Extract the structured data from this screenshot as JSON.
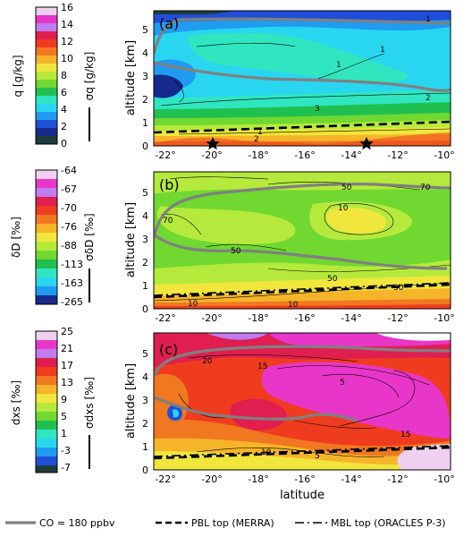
{
  "chart_data": [
    {
      "panel": "(a)",
      "type": "contourf",
      "colorbar": {
        "label": "q [g/kg]",
        "ticks": [
          "16",
          "14",
          "12",
          "10",
          "8",
          "6",
          "4",
          "2",
          "0"
        ],
        "levels": [
          0,
          1,
          2,
          3,
          4,
          5,
          6,
          7,
          8,
          9,
          10,
          11,
          12,
          13,
          14,
          15,
          16
        ]
      },
      "sigma_label": "σq [g/kg]",
      "xlabel": "",
      "ylabel": "altitude [km]",
      "xticks": [
        "-22°",
        "-20°",
        "-18°",
        "-16°",
        "-14°",
        "-12°",
        "-10°"
      ],
      "yticks": [
        "0",
        "1",
        "2",
        "3",
        "4",
        "5"
      ],
      "xlim": [
        -22,
        -9.8
      ],
      "ylim": [
        0,
        5.8
      ],
      "contour_labels": [
        "1",
        "1",
        "1",
        "1",
        "2",
        "2",
        "3"
      ],
      "markers": [
        {
          "type": "star",
          "x": -19.8,
          "y": 0.1
        },
        {
          "type": "star",
          "x": -12.6,
          "y": 0.1
        }
      ],
      "pbl_top_merra": {
        "x": [
          -22,
          -10
        ],
        "y": [
          0.55,
          1.05
        ]
      },
      "co_180": [
        [
          -21.5,
          5.3
        ],
        [
          -20,
          5.5
        ],
        [
          -18,
          5.5
        ],
        [
          -16,
          5.4
        ],
        [
          -14,
          5.25
        ],
        [
          -12,
          5.2
        ],
        [
          -10,
          5.2
        ]
      ]
    },
    {
      "panel": "(b)",
      "type": "contourf",
      "colorbar": {
        "label": "δD [‰]",
        "ticks": [
          "-64",
          "-67",
          "-70",
          "-76",
          "-88",
          "-113",
          "-163",
          "-265"
        ]
      },
      "sigma_label": "σδD [‰]",
      "xlabel": "",
      "ylabel": "altitude [km]",
      "xticks": [
        "-22°",
        "-20°",
        "-18°",
        "-16°",
        "-14°",
        "-12°",
        "-10°"
      ],
      "yticks": [
        "0",
        "1",
        "2",
        "3",
        "4",
        "5"
      ],
      "xlim": [
        -22,
        -9.8
      ],
      "ylim": [
        0,
        5.8
      ],
      "contour_labels": [
        "70",
        "50",
        "10",
        "50",
        "70",
        "30",
        "10",
        "10",
        "50"
      ],
      "mbl_top_oracles": {
        "x": [
          -22,
          -10
        ],
        "y": [
          0.6,
          1.05
        ]
      }
    },
    {
      "panel": "(c)",
      "type": "contourf",
      "colorbar": {
        "label": "dxs [‰]",
        "ticks": [
          "25",
          "21",
          "17",
          "13",
          "9",
          "5",
          "1",
          "-3",
          "-7"
        ]
      },
      "sigma_label": "σdxs [‰]",
      "xlabel": "latitude",
      "ylabel": "altitude [km]",
      "xticks": [
        "-22°",
        "-20°",
        "-18°",
        "-16°",
        "-14°",
        "-12°",
        "-10°"
      ],
      "yticks": [
        "0",
        "1",
        "2",
        "3",
        "4",
        "5"
      ],
      "xlim": [
        -22,
        -9.8
      ],
      "ylim": [
        0,
        5.8
      ],
      "contour_labels": [
        "20",
        "15",
        "5",
        "15",
        "10",
        "5"
      ]
    }
  ],
  "legend": {
    "items": [
      {
        "label": "CO = 180 ppbv",
        "style": "solid-gray"
      },
      {
        "label": "PBL top (MERRA)",
        "style": "dashed"
      },
      {
        "label": "MBL top (ORACLES P-3)",
        "style": "dashdot"
      }
    ],
    "position": "bottom"
  },
  "colors": {
    "colormap": [
      "#1e3c3c",
      "#152a8a",
      "#1f4fd8",
      "#1f9bf0",
      "#29d6f0",
      "#2fe6c0",
      "#20c050",
      "#70d830",
      "#b5ea3c",
      "#f0e63c",
      "#f5b42a",
      "#f07820",
      "#f03c1e",
      "#e01e50",
      "#e836c8",
      "#c07cf0",
      "#f0d0f0",
      "#ffffff"
    ],
    "co_line": "#808080"
  }
}
